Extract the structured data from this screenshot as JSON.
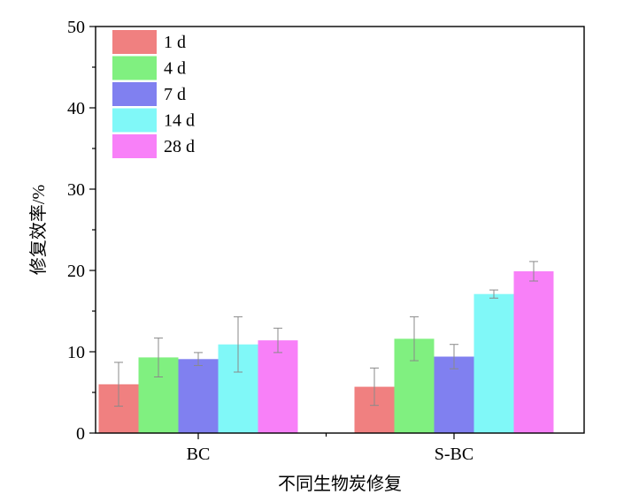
{
  "chart_data": {
    "type": "bar",
    "categories": [
      "BC",
      "S-BC"
    ],
    "series": [
      {
        "name": "1 d",
        "color": "#f08080",
        "values": [
          6.0,
          5.7
        ],
        "errors": [
          2.7,
          2.3
        ]
      },
      {
        "name": "4 d",
        "color": "#80f080",
        "values": [
          9.3,
          11.6
        ],
        "errors": [
          2.4,
          2.7
        ]
      },
      {
        "name": "7 d",
        "color": "#8080f0",
        "values": [
          9.1,
          9.4
        ],
        "errors": [
          0.8,
          1.5
        ]
      },
      {
        "name": "14 d",
        "color": "#80f8f8",
        "values": [
          10.9,
          17.1
        ],
        "errors": [
          3.4,
          0.5
        ]
      },
      {
        "name": "28 d",
        "color": "#f880f8",
        "values": [
          11.4,
          19.9
        ],
        "errors": [
          1.5,
          1.2
        ]
      }
    ],
    "xlabel": "不同生物炭修复",
    "ylabel": "修复效率/%",
    "ylim": [
      0,
      50
    ],
    "yticks": [
      "0",
      "10",
      "20",
      "30",
      "40",
      "50"
    ],
    "grid": false,
    "legend": "top-left"
  }
}
